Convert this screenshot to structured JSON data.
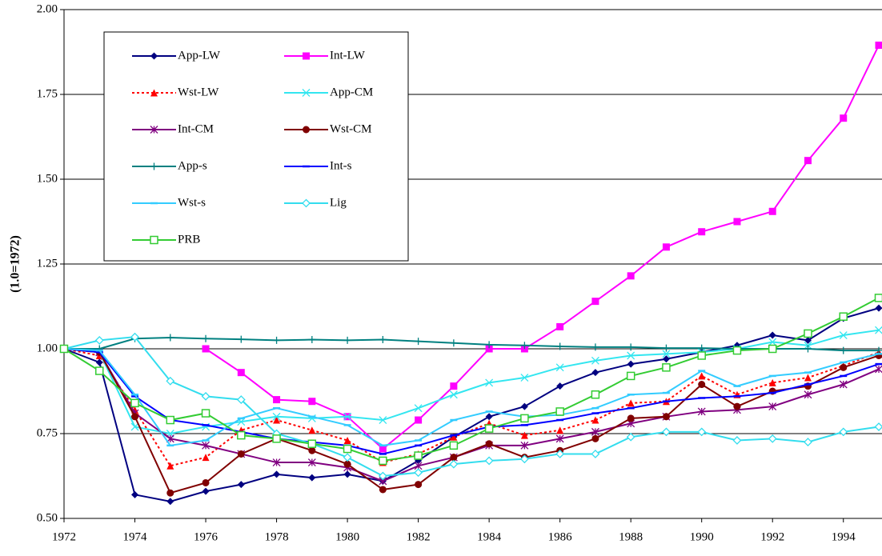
{
  "chart_data": {
    "type": "line",
    "y_label": "(1.0=1972)",
    "x": [
      1972,
      1973,
      1974,
      1975,
      1976,
      1977,
      1978,
      1979,
      1980,
      1981,
      1982,
      1983,
      1984,
      1985,
      1986,
      1987,
      1988,
      1989,
      1990,
      1991,
      1992,
      1993,
      1994,
      1995
    ],
    "xlim": [
      1972,
      1995
    ],
    "xticks": [
      1972,
      1974,
      1976,
      1978,
      1980,
      1982,
      1984,
      1986,
      1988,
      1990,
      1992,
      1994
    ],
    "ylim": [
      0.5,
      2.0
    ],
    "yticks": [
      {
        "value": 0.5,
        "label": "0.50"
      },
      {
        "value": 0.75,
        "label": "0.75"
      },
      {
        "value": 1.0,
        "label": "1.00"
      },
      {
        "value": 1.25,
        "label": "1.25"
      },
      {
        "value": 1.5,
        "label": "1.50"
      },
      {
        "value": 1.75,
        "label": "1.75"
      },
      {
        "value": 2.0,
        "label": "2.00"
      }
    ],
    "grid": true,
    "legend": "upper left",
    "series": [
      {
        "name": "App-LW",
        "color": "#000080",
        "marker": "diamond",
        "values": [
          1.0,
          0.96,
          0.57,
          0.55,
          0.58,
          0.6,
          0.63,
          0.62,
          0.63,
          0.61,
          0.67,
          0.74,
          0.8,
          0.83,
          0.89,
          0.93,
          0.955,
          0.97,
          0.99,
          1.01,
          1.04,
          1.025,
          1.09,
          1.12
        ]
      },
      {
        "name": "Int-LW",
        "color": "#ff00ff",
        "marker": "square",
        "values": [
          null,
          null,
          null,
          null,
          1.0,
          0.93,
          0.85,
          0.845,
          0.8,
          0.705,
          0.79,
          0.89,
          1.0,
          1.0,
          1.065,
          1.14,
          1.215,
          1.3,
          1.345,
          1.375,
          1.405,
          1.555,
          1.68,
          1.895
        ]
      },
      {
        "name": "Wst-LW",
        "color": "#ff0000",
        "marker": "triangle",
        "dashed": true,
        "values": [
          1.0,
          0.98,
          0.82,
          0.655,
          0.68,
          0.76,
          0.79,
          0.76,
          0.73,
          0.665,
          0.69,
          0.74,
          0.78,
          0.745,
          0.76,
          0.79,
          0.84,
          0.845,
          0.92,
          0.865,
          0.9,
          0.915,
          0.95,
          0.99
        ]
      },
      {
        "name": "App-CM",
        "color": "#33e6f0",
        "marker": "x",
        "values": [
          1.0,
          0.99,
          0.77,
          0.75,
          0.77,
          0.785,
          0.8,
          0.795,
          0.8,
          0.79,
          0.825,
          0.865,
          0.9,
          0.915,
          0.945,
          0.965,
          0.98,
          0.985,
          0.99,
          1.0,
          1.02,
          1.01,
          1.04,
          1.055
        ]
      },
      {
        "name": "Int-CM",
        "color": "#800080",
        "marker": "star",
        "values": [
          1.0,
          0.99,
          0.81,
          0.735,
          0.715,
          0.69,
          0.665,
          0.665,
          0.65,
          0.61,
          0.655,
          0.68,
          0.715,
          0.715,
          0.735,
          0.755,
          0.78,
          0.8,
          0.815,
          0.82,
          0.83,
          0.865,
          0.895,
          0.94
        ]
      },
      {
        "name": "Wst-CM",
        "color": "#800000",
        "marker": "circle",
        "values": [
          1.0,
          0.99,
          0.8,
          0.575,
          0.605,
          0.69,
          0.735,
          0.7,
          0.66,
          0.585,
          0.6,
          0.68,
          0.72,
          0.68,
          0.7,
          0.735,
          0.795,
          0.8,
          0.895,
          0.83,
          0.875,
          0.89,
          0.945,
          0.98
        ]
      },
      {
        "name": "App-s",
        "color": "#008080",
        "marker": "plus",
        "values": [
          1.0,
          1.0,
          1.03,
          1.033,
          1.03,
          1.028,
          1.025,
          1.027,
          1.025,
          1.027,
          1.022,
          1.017,
          1.012,
          1.01,
          1.007,
          1.005,
          1.005,
          1.002,
          1.002,
          1.0,
          1.0,
          1.0,
          0.995,
          0.995
        ]
      },
      {
        "name": "Int-s",
        "color": "#0000ff",
        "marker": "dash",
        "values": [
          1.0,
          0.99,
          0.86,
          0.79,
          0.775,
          0.755,
          0.735,
          0.725,
          0.715,
          0.69,
          0.715,
          0.745,
          0.77,
          0.775,
          0.79,
          0.81,
          0.825,
          0.845,
          0.855,
          0.86,
          0.87,
          0.895,
          0.92,
          0.955
        ]
      },
      {
        "name": "Wst-s",
        "color": "#33ccff",
        "marker": "dash",
        "values": [
          1.0,
          0.995,
          0.865,
          0.715,
          0.73,
          0.795,
          0.825,
          0.8,
          0.775,
          0.715,
          0.73,
          0.79,
          0.815,
          0.8,
          0.805,
          0.825,
          0.865,
          0.87,
          0.935,
          0.89,
          0.92,
          0.93,
          0.96,
          0.985
        ]
      },
      {
        "name": "Lig",
        "color": "#33ddee",
        "marker": "open-diamond",
        "values": [
          1.0,
          1.025,
          1.035,
          0.905,
          0.86,
          0.85,
          0.75,
          0.72,
          0.68,
          0.625,
          0.635,
          0.66,
          0.67,
          0.675,
          0.69,
          0.69,
          0.74,
          0.755,
          0.755,
          0.73,
          0.735,
          0.725,
          0.755,
          0.77
        ]
      },
      {
        "name": "PRB",
        "color": "#33cc33",
        "marker": "open-square",
        "values": [
          1.0,
          0.935,
          0.84,
          0.79,
          0.81,
          0.745,
          0.735,
          0.72,
          0.705,
          0.67,
          0.685,
          0.715,
          0.765,
          0.795,
          0.815,
          0.865,
          0.92,
          0.945,
          0.98,
          0.995,
          1.0,
          1.045,
          1.095,
          1.15
        ]
      }
    ]
  }
}
